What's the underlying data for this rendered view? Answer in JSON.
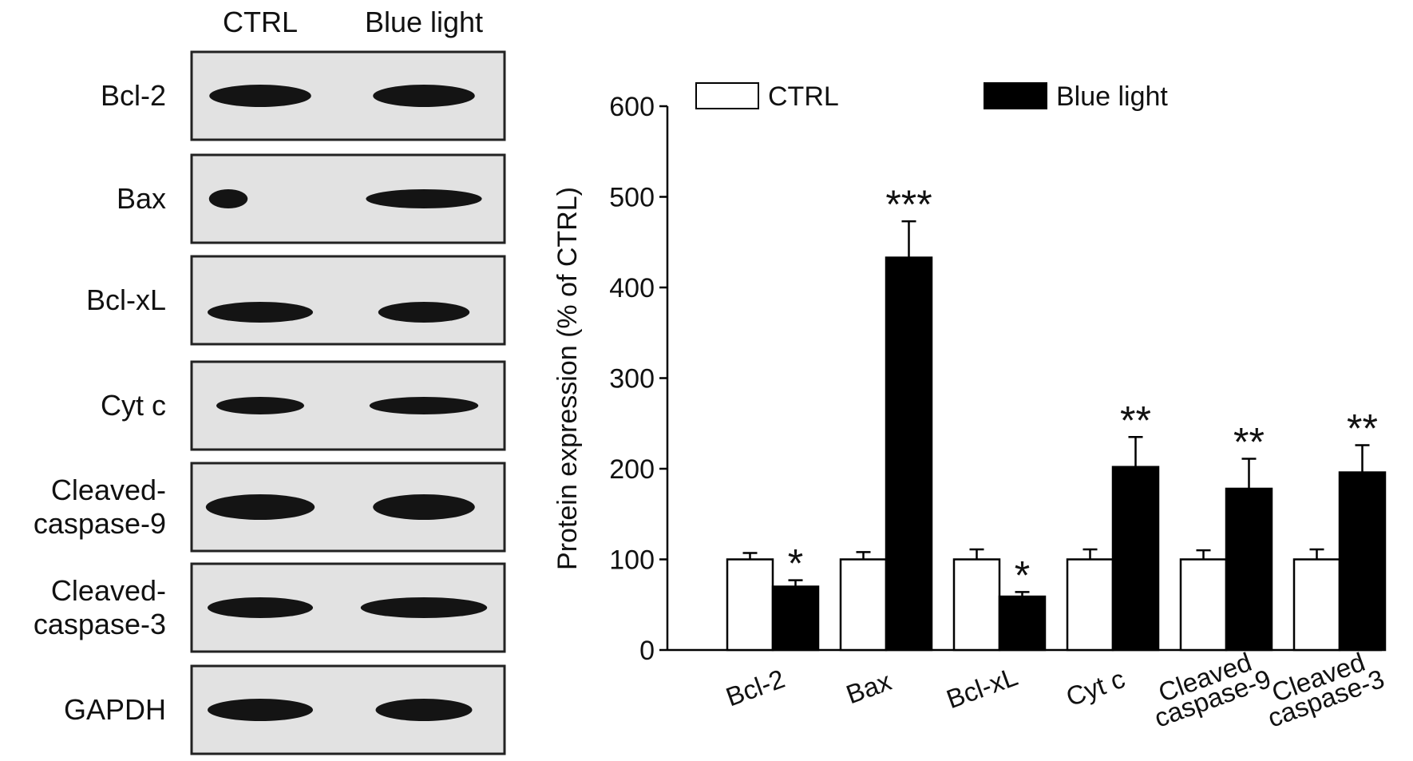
{
  "blot": {
    "lanes": [
      "CTRL",
      "Blue light"
    ],
    "rows": [
      "Bcl-2",
      "Bax",
      "Bcl-xL",
      "Cyt c",
      "Cleaved-\ncaspase-9",
      "Cleaved-\ncaspase-3",
      "GAPDH"
    ]
  },
  "chart_data": {
    "type": "bar",
    "y_label": "Protein expression (% of CTRL)",
    "categories": [
      "Bcl-2",
      "Bax",
      "Bcl-xL",
      "Cyt c",
      "Cleaved\ncaspase-9",
      "Cleaved\ncaspase-3"
    ],
    "series": [
      {
        "name": "CTRL",
        "color": "#ffffff",
        "values": [
          100,
          100,
          100,
          100,
          100,
          100
        ],
        "errors": [
          7,
          8,
          11,
          11,
          10,
          11
        ]
      },
      {
        "name": "Blue light",
        "color": "#000000",
        "values": [
          70,
          433,
          59,
          202,
          178,
          196
        ],
        "errors": [
          7,
          40,
          5,
          33,
          33,
          30
        ],
        "annotations": [
          "*",
          "***",
          "*",
          "**",
          "**",
          "**"
        ]
      }
    ],
    "ylim": [
      0,
      600
    ],
    "yticks": [
      0,
      100,
      200,
      300,
      400,
      500,
      600
    ],
    "grid": false,
    "legend": "top"
  }
}
